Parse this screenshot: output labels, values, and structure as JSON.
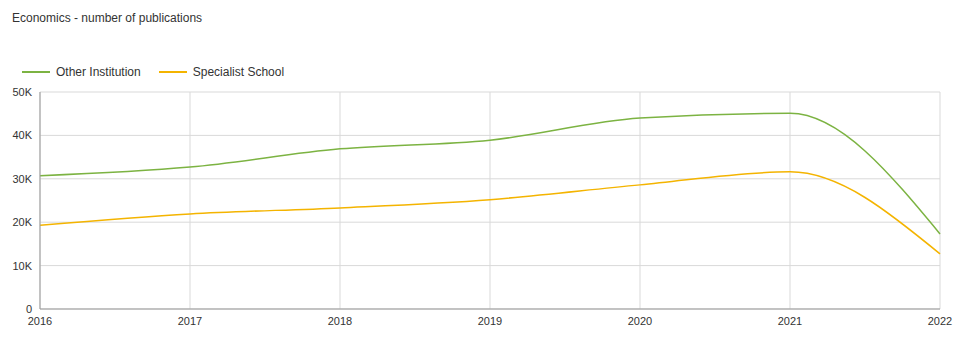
{
  "chart_data": {
    "type": "line",
    "title": "Economics - number of publications",
    "categories": [
      "2016",
      "2017",
      "2018",
      "2019",
      "2020",
      "2021",
      "2022"
    ],
    "series": [
      {
        "name": "Other Institution",
        "color": "#7cb342",
        "values": [
          30700,
          32700,
          36900,
          38900,
          44000,
          45100,
          17300
        ]
      },
      {
        "name": "Specialist School",
        "color": "#f4b400",
        "values": [
          19300,
          21900,
          23300,
          25200,
          28600,
          31600,
          12700
        ]
      }
    ],
    "ylim": [
      0,
      50000
    ],
    "yticks": [
      0,
      {
        "value": 10000,
        "label": "10K"
      },
      {
        "value": 20000,
        "label": "20K"
      },
      {
        "value": 30000,
        "label": "30K"
      },
      {
        "value": 40000,
        "label": "40K"
      },
      {
        "value": 50000,
        "label": "50K"
      }
    ],
    "grid": true,
    "legend": "top-left"
  }
}
